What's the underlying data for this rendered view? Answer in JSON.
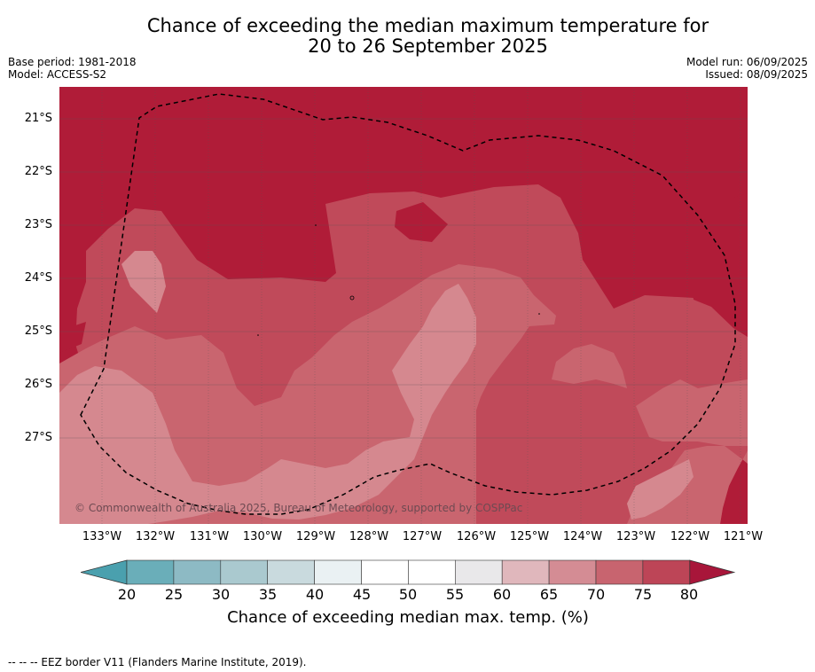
{
  "title": {
    "line1": "Chance of exceeding the median maximum temperature for",
    "line2": "20 to 26 September 2025"
  },
  "meta": {
    "base_period": "Base period: 1981-2018",
    "model": "Model: ACCESS-S2",
    "model_run": "Model run: 06/09/2025",
    "issued": "Issued: 08/09/2025"
  },
  "map": {
    "lat_labels": [
      "21°S",
      "22°S",
      "23°S",
      "24°S",
      "25°S",
      "26°S",
      "27°S"
    ],
    "lon_labels": [
      "133°W",
      "132°W",
      "131°W",
      "130°W",
      "129°W",
      "128°W",
      "127°W",
      "126°W",
      "125°W",
      "124°W",
      "123°W",
      "122°W",
      "121°W"
    ],
    "copyright": "© Commonwealth of Australia 2025, Bureau of Meteorology, supported by COSPPac",
    "colors": {
      "gt80": "#b01c38",
      "75_80": "#c04a5a",
      "70_75": "#c9656f",
      "65_70": "#d5888f",
      "eez_line": "#000000"
    }
  },
  "colorbar": {
    "ticks": [
      "20",
      "25",
      "30",
      "35",
      "40",
      "45",
      "50",
      "55",
      "60",
      "65",
      "70",
      "75",
      "80"
    ],
    "colors": [
      "#6aaeb9",
      "#8dbac4",
      "#aac9cf",
      "#c9dade",
      "#eaf1f3",
      "#ffffff",
      "#ffffff",
      "#e9e8ea",
      "#e0b7bc",
      "#d48c94",
      "#c8646f",
      "#bd4557"
    ],
    "under_color": "#4aa0ae",
    "over_color": "#a8163a",
    "label": "Chance of exceeding median max. temp. (%)"
  },
  "footer": {
    "legend": "--  --  -- EEZ border V11 (Flanders Marine Institute, 2019)."
  }
}
